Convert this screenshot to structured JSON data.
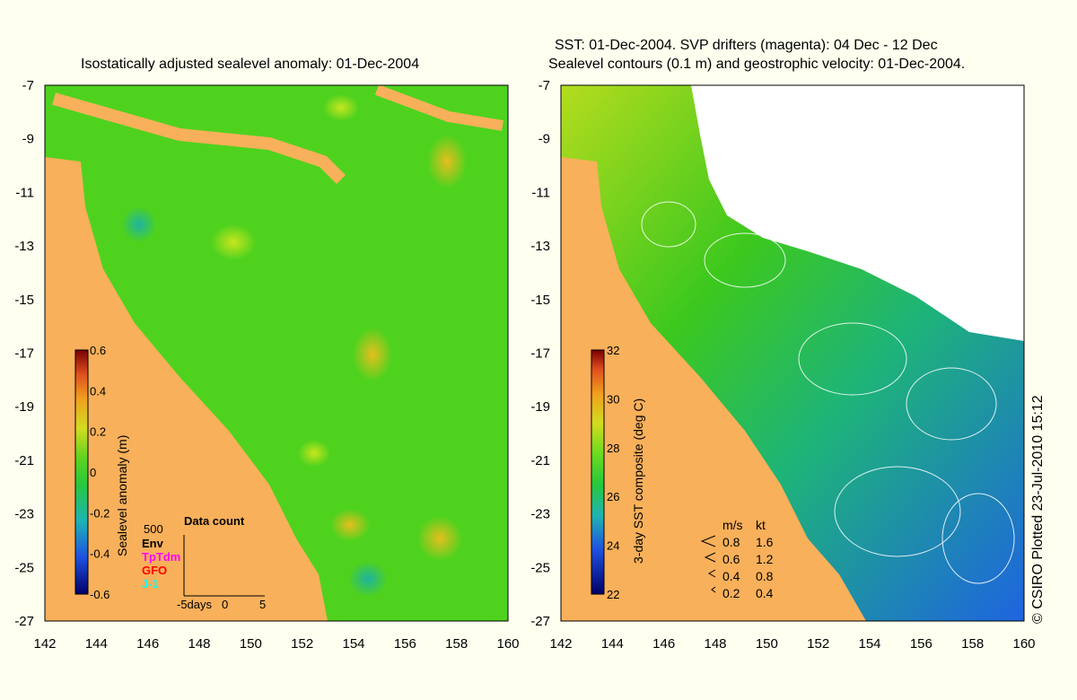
{
  "left_panel": {
    "title": "Isostatically adjusted sealevel anomaly: 01-Dec-2004",
    "x_ticks": [
      "142",
      "144",
      "146",
      "148",
      "150",
      "152",
      "154",
      "156",
      "158",
      "160"
    ],
    "y_ticks": [
      "-7",
      "-9",
      "-11",
      "-13",
      "-15",
      "-17",
      "-19",
      "-21",
      "-23",
      "-25",
      "-27"
    ],
    "colorbar": {
      "label": "Sealevel anomaly (m)",
      "ticks": [
        "0.6",
        "0.4",
        "0.2",
        "0",
        "-0.2",
        "-0.4",
        "-0.6"
      ]
    },
    "data_count": {
      "title": "Data count",
      "max_label": "500",
      "legend": [
        {
          "name": "Env",
          "color": "#000000"
        },
        {
          "name": "TpTdm",
          "color": "#ff00ff"
        },
        {
          "name": "GFO",
          "color": "#ff0000"
        },
        {
          "name": "J-1",
          "color": "#00ffff"
        }
      ],
      "axis_labels": [
        "-5days",
        "0",
        "5"
      ]
    }
  },
  "right_panel": {
    "title_line1": "SST: 01-Dec-2004. SVP drifters (magenta): 04 Dec - 12 Dec",
    "title_line2": "Sealevel contours (0.1 m) and geostrophic velocity: 01-Dec-2004.",
    "x_ticks": [
      "142",
      "144",
      "146",
      "148",
      "150",
      "152",
      "154",
      "156",
      "158",
      "160"
    ],
    "y_ticks": [
      "-7",
      "-9",
      "-11",
      "-13",
      "-15",
      "-17",
      "-19",
      "-21",
      "-23",
      "-25",
      "-27"
    ],
    "colorbar": {
      "label": "3-day SST composite (deg C)",
      "ticks": [
        "32",
        "30",
        "28",
        "26",
        "24",
        "22"
      ]
    },
    "velocity_legend": {
      "header_ms": "m/s",
      "header_kt": "kt",
      "rows": [
        {
          "ms": "0.8",
          "kt": "1.6"
        },
        {
          "ms": "0.6",
          "kt": "1.2"
        },
        {
          "ms": "0.4",
          "kt": "0.8"
        },
        {
          "ms": "0.2",
          "kt": "0.4"
        }
      ]
    }
  },
  "credit": "© CSIRO Plotted 23-Jul-2010 15:12",
  "colors": {
    "background": "#fffff0",
    "land": "#f9b05a",
    "ocean_green": "#4fd21e",
    "ocean_blue": "#1e78e0",
    "no_data": "#ffffff"
  }
}
